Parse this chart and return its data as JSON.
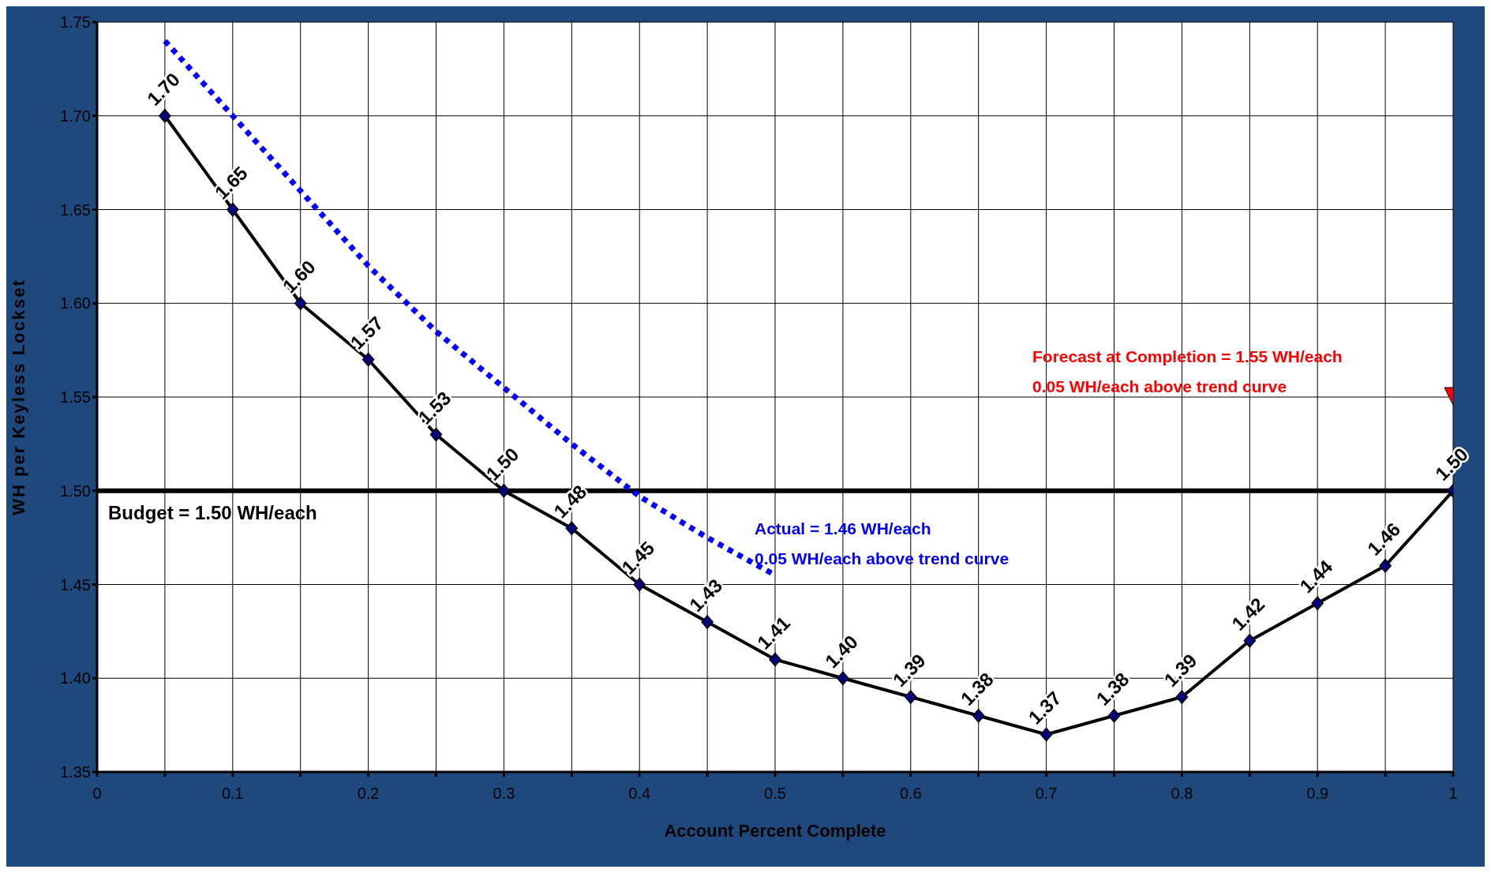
{
  "chart_data": {
    "type": "line",
    "xlabel": "Account Percent Complete",
    "ylabel": "WH per Keyless Lockset",
    "xlim": [
      0,
      1
    ],
    "xticks": [
      0,
      {
        "value": 0.05,
        "label": null
      },
      0.1,
      {
        "value": 0.15,
        "label": null
      },
      0.2,
      {
        "value": 0.25,
        "label": null
      },
      0.3,
      {
        "value": 0.35,
        "label": null
      },
      0.4,
      {
        "value": 0.45,
        "label": null
      },
      0.5,
      {
        "value": 0.55,
        "label": null
      },
      0.6,
      {
        "value": 0.65,
        "label": null
      },
      0.7,
      {
        "value": 0.75,
        "label": null
      },
      0.8,
      {
        "value": 0.85,
        "label": null
      },
      0.9,
      {
        "value": 0.95,
        "label": null
      },
      1
    ],
    "ylim": [
      1.35,
      1.75
    ],
    "yticks": [
      {
        "value": 1.35,
        "label": "1.35"
      },
      {
        "value": 1.4,
        "label": "1.40"
      },
      {
        "value": 1.45,
        "label": "1.45"
      },
      {
        "value": 1.5,
        "label": "1.50"
      },
      {
        "value": 1.55,
        "label": "1.55"
      },
      {
        "value": 1.6,
        "label": "1.60"
      },
      {
        "value": 1.65,
        "label": "1.65"
      },
      {
        "value": 1.7,
        "label": "1.70"
      },
      {
        "value": 1.75,
        "label": "1.75"
      }
    ],
    "grid": true,
    "series": [
      {
        "color": "#000000",
        "marker": "diamond",
        "line_style": "solid",
        "x": [
          0.05,
          0.1,
          0.15,
          0.2,
          0.25,
          0.3,
          0.35,
          0.4,
          0.45,
          0.5,
          0.55,
          0.6,
          0.65,
          0.7,
          0.75,
          0.8,
          0.85,
          0.9,
          0.95,
          1
        ],
        "values": [
          1.7,
          1.65,
          1.6,
          1.57,
          1.53,
          1.5,
          1.48,
          1.45,
          1.43,
          1.41,
          1.4,
          1.39,
          1.38,
          1.37,
          1.38,
          1.39,
          1.42,
          1.44,
          1.46,
          1.5
        ],
        "value_labels": [
          "1.70",
          "1.65",
          "1.60",
          "1.57",
          "1.53",
          "1.50",
          "1.48",
          "1.45",
          "1.43",
          "1.41",
          "1.40",
          "1.39",
          "1.38",
          "1.37",
          "1.38",
          "1.39",
          "1.42",
          "1.44",
          "1.46",
          "1.50"
        ]
      },
      {
        "color": "#0000ff",
        "marker": "none",
        "line_style": "dotted",
        "x": [
          0.05,
          0.1,
          0.15,
          0.2,
          0.25,
          0.3,
          0.35,
          0.4,
          0.45,
          0.5
        ],
        "values": [
          1.74,
          1.7,
          1.66,
          1.62,
          1.585,
          1.555,
          1.525,
          1.497,
          1.475,
          1.455
        ]
      },
      {
        "type": "scatter",
        "color": "#ff0000",
        "marker": "triangle",
        "x": [
          1
        ],
        "values": [
          1.55
        ]
      }
    ],
    "ref_lines": [
      {
        "axis": "y",
        "value": 1.5,
        "label": "Budget = 1.50 WH/each",
        "color": "#000000",
        "line_style": "solid"
      }
    ],
    "annotations": [
      "Actual = 1.46 WH/each",
      "0.05 WH/each above trend curve",
      "Forecast at Completion = 1.55 WH/each",
      "0.05 WH/each above trend curve"
    ]
  }
}
